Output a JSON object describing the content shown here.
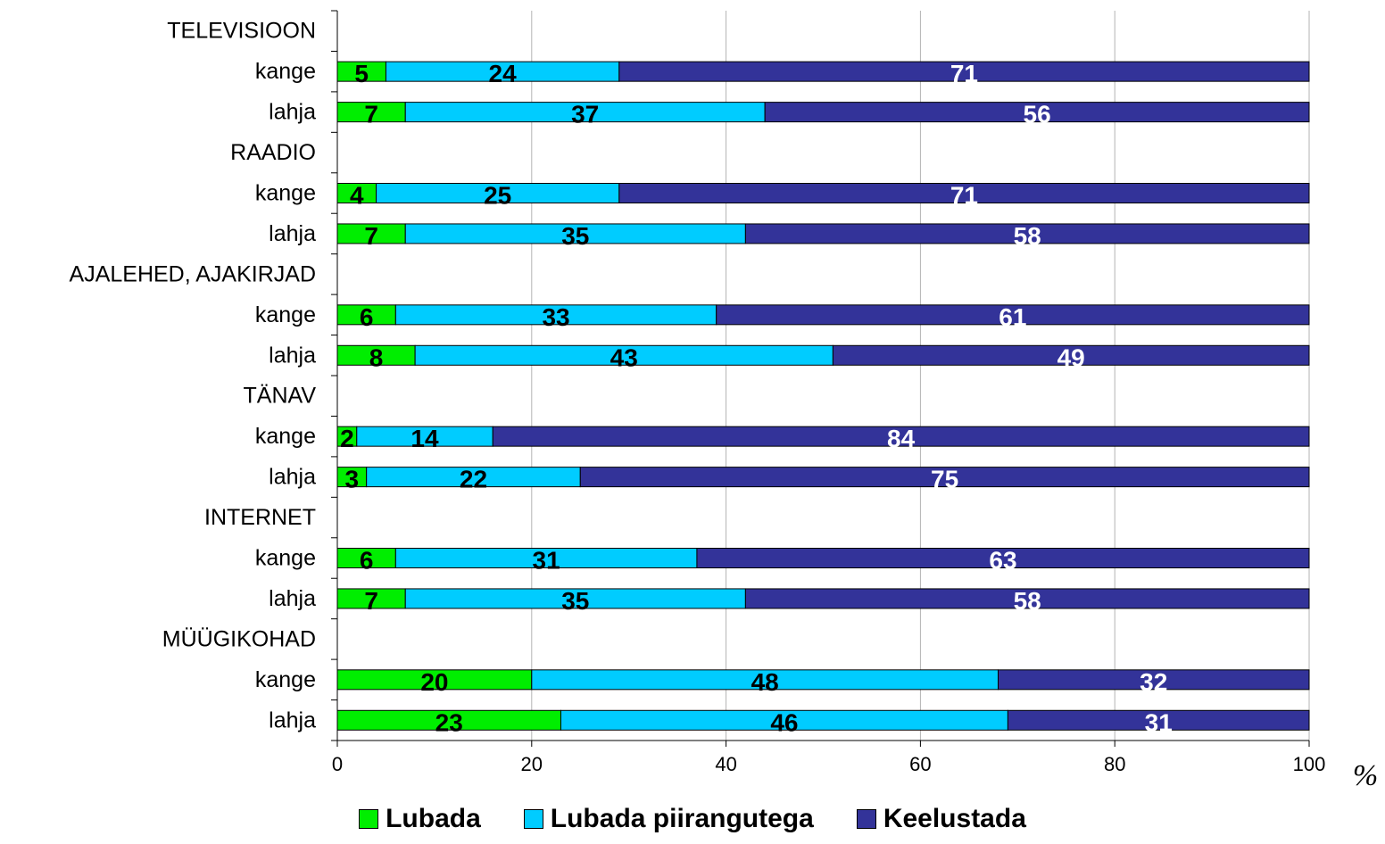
{
  "chart_data": {
    "type": "bar",
    "orientation": "horizontal",
    "stacked": true,
    "percent_unit": "%",
    "xlim": [
      0,
      100
    ],
    "xticks": [
      "0",
      "20",
      "40",
      "60",
      "80",
      "100"
    ],
    "grid": "vertical",
    "legend_position": "bottom",
    "rows": [
      {
        "label": "TELEVISIOON",
        "header": true
      },
      {
        "label": "kange",
        "values": [
          5,
          24,
          71
        ]
      },
      {
        "label": "lahja",
        "values": [
          7,
          37,
          56
        ]
      },
      {
        "label": "RAADIO",
        "header": true
      },
      {
        "label": "kange",
        "values": [
          4,
          25,
          71
        ]
      },
      {
        "label": "lahja",
        "values": [
          7,
          35,
          58
        ]
      },
      {
        "label": "AJALEHED, AJAKIRJAD",
        "header": true
      },
      {
        "label": "kange",
        "values": [
          6,
          33,
          61
        ]
      },
      {
        "label": "lahja",
        "values": [
          8,
          43,
          49
        ]
      },
      {
        "label": "TÄNAV",
        "header": true
      },
      {
        "label": "kange",
        "values": [
          2,
          14,
          84
        ]
      },
      {
        "label": "lahja",
        "values": [
          3,
          22,
          75
        ]
      },
      {
        "label": "INTERNET",
        "header": true
      },
      {
        "label": "kange",
        "values": [
          6,
          31,
          63
        ]
      },
      {
        "label": "lahja",
        "values": [
          7,
          35,
          58
        ]
      },
      {
        "label": "MÜÜGIKOHAD",
        "header": true
      },
      {
        "label": "kange",
        "values": [
          20,
          48,
          32
        ]
      },
      {
        "label": "lahja",
        "values": [
          23,
          46,
          31
        ]
      }
    ],
    "series": [
      {
        "name": "Lubada",
        "color": "#00ee00",
        "label_color": "#000000"
      },
      {
        "name": "Lubada piirangutega",
        "color": "#00ccff",
        "label_color": "#000000"
      },
      {
        "name": "Keelustada",
        "color": "#333399",
        "label_color": "#ffffff"
      }
    ]
  }
}
